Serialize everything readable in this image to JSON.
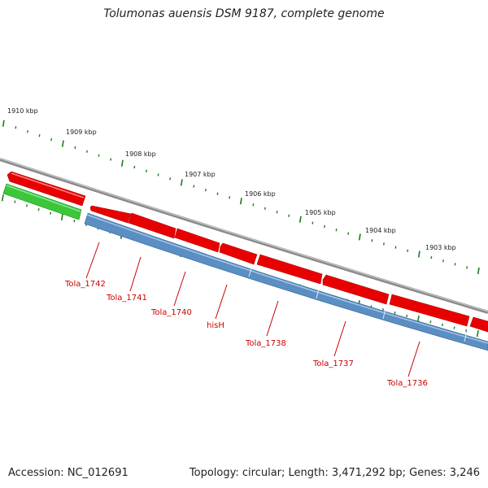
{
  "title": "Tolumonas auensis DSM 9187, complete genome",
  "footer": {
    "accession": "Accession: NC_012691",
    "summary": "Topology: circular; Length: 3,471,292 bp; Genes: 3,246"
  },
  "kbp_labels": [
    "1910 kbp",
    "1909 kbp",
    "1908 kbp",
    "1907 kbp",
    "1906 kbp",
    "1905 kbp",
    "1904 kbp",
    "1903 kbp"
  ],
  "gene_labels": [
    "Tola_1742",
    "Tola_1741",
    "Tola_1740",
    "hisH",
    "Tola_1738",
    "Tola_1737",
    "Tola_1736"
  ],
  "colors": {
    "backbone": "#8a8a8a",
    "cds_forward": "#e80000",
    "cds_reverse": "#5b8ec2",
    "gene_green": "#3cc63c",
    "ticks": "#1f7a1f",
    "label": "#cc0000"
  }
}
